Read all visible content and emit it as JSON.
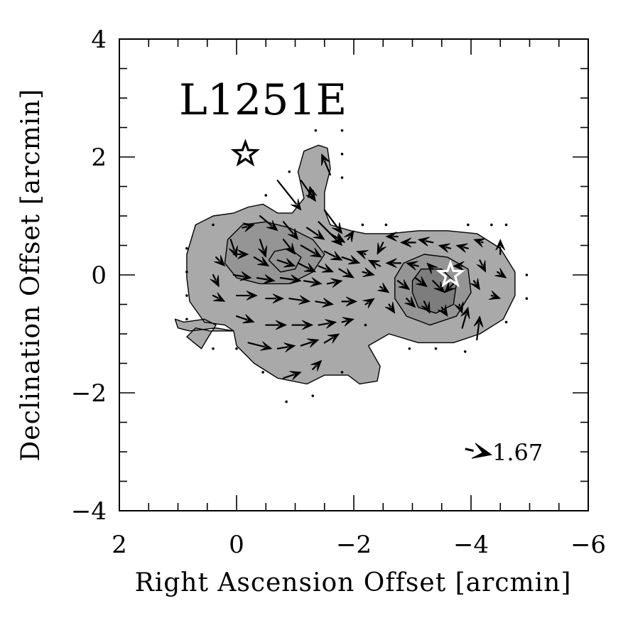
{
  "chart_data": {
    "type": "scatter",
    "title": "L1251E",
    "xlabel": "Right Ascension Offset [arcmin]",
    "ylabel": "Declination Offset [arcmin]",
    "xlim": [
      2,
      -6
    ],
    "ylim": [
      -4,
      4
    ],
    "x_ticks": [
      "2",
      "0",
      "−2",
      "−4",
      "−6"
    ],
    "y_ticks": [
      "−4",
      "−2",
      "0",
      "2",
      "4"
    ],
    "legend": "none",
    "grid": false,
    "scale_vector": {
      "label": "1.67",
      "x": -3.9,
      "y": -2.95,
      "dx": -0.45,
      "dy": -0.1
    },
    "stars": [
      {
        "name": "star-black",
        "x": -0.15,
        "y": 2.05,
        "color": "#000000"
      },
      {
        "name": "star-white",
        "x": -3.65,
        "y": 0.0,
        "color": "#ffffff"
      }
    ],
    "vectors": [
      {
        "x": -1.1,
        "y": 1.6,
        "dx": -0.25,
        "dy": -0.35
      },
      {
        "x": -1.6,
        "y": 1.7,
        "dx": 0.15,
        "dy": 0.35
      },
      {
        "x": -1.3,
        "y": 1.3,
        "dx": 0.05,
        "dy": 0.2
      },
      {
        "x": -0.7,
        "y": 1.6,
        "dx": -0.4,
        "dy": -0.5
      },
      {
        "x": -1.5,
        "y": 1.1,
        "dx": -0.3,
        "dy": -0.4
      },
      {
        "x": -1.4,
        "y": 0.9,
        "dx": -0.4,
        "dy": -0.4
      },
      {
        "x": -0.4,
        "y": 1.0,
        "dx": -0.3,
        "dy": -0.25
      },
      {
        "x": -0.8,
        "y": 0.9,
        "dx": -0.25,
        "dy": -0.3
      },
      {
        "x": -1.2,
        "y": 0.8,
        "dx": -0.3,
        "dy": -0.2
      },
      {
        "x": -1.6,
        "y": 0.7,
        "dx": -0.25,
        "dy": -0.15
      },
      {
        "x": -1.9,
        "y": 0.6,
        "dx": -0.1,
        "dy": 0.15
      },
      {
        "x": -0.1,
        "y": 0.8,
        "dx": -0.2,
        "dy": 0.05
      },
      {
        "x": 0.1,
        "y": 0.6,
        "dx": -0.1,
        "dy": -0.3
      },
      {
        "x": -0.4,
        "y": 0.6,
        "dx": -0.1,
        "dy": -0.3
      },
      {
        "x": -0.8,
        "y": 0.6,
        "dx": -0.2,
        "dy": -0.25
      },
      {
        "x": -1.1,
        "y": 0.5,
        "dx": -0.35,
        "dy": -0.2
      },
      {
        "x": -1.5,
        "y": 0.4,
        "dx": -0.3,
        "dy": -0.15
      },
      {
        "x": -1.8,
        "y": 0.3,
        "dx": -0.3,
        "dy": -0.1
      },
      {
        "x": -2.2,
        "y": 0.35,
        "dx": 0.15,
        "dy": 0.05
      },
      {
        "x": 0.35,
        "y": 0.3,
        "dx": -0.15,
        "dy": -0.15
      },
      {
        "x": 0.05,
        "y": 0.35,
        "dx": -0.25,
        "dy": 0.0
      },
      {
        "x": -0.3,
        "y": 0.3,
        "dx": -0.25,
        "dy": -0.15
      },
      {
        "x": -0.7,
        "y": 0.25,
        "dx": -0.3,
        "dy": -0.1
      },
      {
        "x": -1.05,
        "y": 0.2,
        "dx": -0.3,
        "dy": -0.15
      },
      {
        "x": -1.4,
        "y": 0.15,
        "dx": -0.25,
        "dy": -0.1
      },
      {
        "x": -1.75,
        "y": 0.1,
        "dx": -0.25,
        "dy": -0.15
      },
      {
        "x": -2.15,
        "y": 0.05,
        "dx": -0.2,
        "dy": -0.05
      },
      {
        "x": 0.4,
        "y": 0.0,
        "dx": -0.1,
        "dy": -0.2
      },
      {
        "x": 0.05,
        "y": 0.0,
        "dx": -0.3,
        "dy": -0.05
      },
      {
        "x": -0.35,
        "y": -0.05,
        "dx": -0.3,
        "dy": -0.05
      },
      {
        "x": -0.75,
        "y": -0.05,
        "dx": -0.35,
        "dy": -0.05
      },
      {
        "x": -1.15,
        "y": -0.1,
        "dx": -0.3,
        "dy": -0.05
      },
      {
        "x": -1.55,
        "y": -0.15,
        "dx": -0.25,
        "dy": 0.05
      },
      {
        "x": 0.4,
        "y": -0.35,
        "dx": -0.2,
        "dy": -0.1
      },
      {
        "x": 0.0,
        "y": -0.35,
        "dx": -0.35,
        "dy": 0.0
      },
      {
        "x": -0.5,
        "y": -0.4,
        "dx": -0.3,
        "dy": 0.0
      },
      {
        "x": -0.9,
        "y": -0.4,
        "dx": -0.35,
        "dy": -0.05
      },
      {
        "x": -1.35,
        "y": -0.45,
        "dx": -0.3,
        "dy": -0.05
      },
      {
        "x": -1.8,
        "y": -0.45,
        "dx": -0.25,
        "dy": 0.0
      },
      {
        "x": -2.2,
        "y": -0.5,
        "dx": -0.15,
        "dy": 0.1
      },
      {
        "x": 0.0,
        "y": -0.7,
        "dx": -0.3,
        "dy": -0.1
      },
      {
        "x": -0.5,
        "y": -0.85,
        "dx": -0.35,
        "dy": 0.0
      },
      {
        "x": -0.95,
        "y": -0.85,
        "dx": -0.35,
        "dy": 0.0
      },
      {
        "x": -1.4,
        "y": -0.85,
        "dx": -0.3,
        "dy": 0.05
      },
      {
        "x": -1.8,
        "y": -0.8,
        "dx": -0.2,
        "dy": 0.05
      },
      {
        "x": -0.2,
        "y": -1.15,
        "dx": -0.4,
        "dy": -0.1
      },
      {
        "x": -0.7,
        "y": -1.25,
        "dx": -0.3,
        "dy": 0.05
      },
      {
        "x": -1.1,
        "y": -1.2,
        "dx": -0.3,
        "dy": 0.1
      },
      {
        "x": -1.5,
        "y": -1.15,
        "dx": -0.25,
        "dy": 0.15
      },
      {
        "x": -0.8,
        "y": -1.75,
        "dx": -0.3,
        "dy": 0.1
      },
      {
        "x": -1.3,
        "y": -1.6,
        "dx": -0.15,
        "dy": 0.15
      },
      {
        "x": -2.5,
        "y": 0.55,
        "dx": 0.1,
        "dy": -0.2
      },
      {
        "x": -2.75,
        "y": 0.65,
        "dx": 0.2,
        "dy": 0.0
      },
      {
        "x": -3.05,
        "y": 0.55,
        "dx": 0.25,
        "dy": 0.0
      },
      {
        "x": -3.35,
        "y": 0.55,
        "dx": 0.25,
        "dy": 0.05
      },
      {
        "x": -3.65,
        "y": 0.45,
        "dx": 0.2,
        "dy": 0.05
      },
      {
        "x": -3.95,
        "y": 0.45,
        "dx": 0.2,
        "dy": 0.05
      },
      {
        "x": -4.2,
        "y": 0.55,
        "dx": 0.15,
        "dy": 0.05
      },
      {
        "x": -4.5,
        "y": 0.35,
        "dx": 0.0,
        "dy": 0.25
      },
      {
        "x": -2.45,
        "y": 0.15,
        "dx": 0.2,
        "dy": 0.1
      },
      {
        "x": -2.8,
        "y": 0.2,
        "dx": 0.25,
        "dy": 0.0
      },
      {
        "x": -3.1,
        "y": 0.15,
        "dx": 0.2,
        "dy": 0.05
      },
      {
        "x": -3.35,
        "y": 0.1,
        "dx": 0.1,
        "dy": 0.1
      },
      {
        "x": -3.85,
        "y": 0.15,
        "dx": 0.15,
        "dy": 0.0
      },
      {
        "x": -4.15,
        "y": 0.25,
        "dx": -0.1,
        "dy": -0.2
      },
      {
        "x": -4.45,
        "y": 0.05,
        "dx": -0.15,
        "dy": -0.1
      },
      {
        "x": -2.45,
        "y": -0.2,
        "dx": -0.15,
        "dy": -0.1
      },
      {
        "x": -2.75,
        "y": -0.1,
        "dx": -0.2,
        "dy": -0.15
      },
      {
        "x": -3.05,
        "y": -0.05,
        "dx": -0.2,
        "dy": -0.15
      },
      {
        "x": -3.35,
        "y": -0.1,
        "dx": -0.2,
        "dy": -0.2
      },
      {
        "x": -3.7,
        "y": -0.15,
        "dx": 0.15,
        "dy": -0.15
      },
      {
        "x": -4.05,
        "y": -0.1,
        "dx": -0.1,
        "dy": -0.15
      },
      {
        "x": -4.35,
        "y": -0.35,
        "dx": -0.15,
        "dy": -0.05
      },
      {
        "x": -2.6,
        "y": -0.5,
        "dx": -0.1,
        "dy": -0.15
      },
      {
        "x": -2.9,
        "y": -0.4,
        "dx": -0.15,
        "dy": -0.15
      },
      {
        "x": -3.2,
        "y": -0.45,
        "dx": -0.1,
        "dy": -0.2
      },
      {
        "x": -3.5,
        "y": -0.55,
        "dx": -0.1,
        "dy": -0.15
      },
      {
        "x": -3.8,
        "y": -0.5,
        "dx": -0.05,
        "dy": -0.15
      },
      {
        "x": -3.85,
        "y": -0.9,
        "dx": -0.1,
        "dy": 0.35
      },
      {
        "x": -4.1,
        "y": -1.1,
        "dx": -0.05,
        "dy": 0.4
      }
    ],
    "dots": [
      {
        "x": -1.35,
        "y": 2.45
      },
      {
        "x": -1.8,
        "y": 2.45
      },
      {
        "x": -1.8,
        "y": 2.05
      },
      {
        "x": -1.8,
        "y": 1.65
      },
      {
        "x": -0.9,
        "y": 1.75
      },
      {
        "x": -0.5,
        "y": 1.35
      },
      {
        "x": 0.4,
        "y": 0.85
      },
      {
        "x": 0.85,
        "y": 0.45
      },
      {
        "x": 0.85,
        "y": 0.05
      },
      {
        "x": 0.85,
        "y": -0.35
      },
      {
        "x": 0.85,
        "y": -0.75
      },
      {
        "x": 0.4,
        "y": -1.25
      },
      {
        "x": 0.0,
        "y": -1.25
      },
      {
        "x": -0.45,
        "y": -1.65
      },
      {
        "x": -0.85,
        "y": -2.15
      },
      {
        "x": -1.3,
        "y": -2.05
      },
      {
        "x": -1.8,
        "y": -1.65
      },
      {
        "x": -2.15,
        "y": 0.85
      },
      {
        "x": -2.55,
        "y": 0.85
      },
      {
        "x": -2.2,
        "y": -0.85
      },
      {
        "x": -2.95,
        "y": -1.25
      },
      {
        "x": -3.4,
        "y": -1.25
      },
      {
        "x": -3.9,
        "y": -1.3
      },
      {
        "x": -3.95,
        "y": 0.85
      },
      {
        "x": -4.35,
        "y": 0.85
      },
      {
        "x": -4.6,
        "y": 0.85
      },
      {
        "x": -4.6,
        "y": -0.8
      },
      {
        "x": -4.95,
        "y": 0.0
      },
      {
        "x": -4.95,
        "y": -0.4
      }
    ],
    "contours": [
      {
        "level": 1,
        "fill": "#a9a9a9",
        "points": [
          [
            -0.3,
            -1.5
          ],
          [
            -0.7,
            -1.75
          ],
          [
            -1.2,
            -1.85
          ],
          [
            -1.5,
            -1.7
          ],
          [
            -1.9,
            -1.7
          ],
          [
            -2.1,
            -1.85
          ],
          [
            -2.4,
            -1.8
          ],
          [
            -2.45,
            -1.55
          ],
          [
            -2.25,
            -1.2
          ],
          [
            -2.6,
            -1.0
          ],
          [
            -3.1,
            -1.15
          ],
          [
            -3.7,
            -1.15
          ],
          [
            -4.15,
            -1.0
          ],
          [
            -4.55,
            -0.75
          ],
          [
            -4.75,
            -0.35
          ],
          [
            -4.75,
            0.05
          ],
          [
            -4.5,
            0.45
          ],
          [
            -4.1,
            0.7
          ],
          [
            -3.6,
            0.75
          ],
          [
            -3.1,
            0.75
          ],
          [
            -2.6,
            0.7
          ],
          [
            -2.2,
            0.7
          ],
          [
            -1.95,
            0.75
          ],
          [
            -1.6,
            0.85
          ],
          [
            -1.5,
            1.1
          ],
          [
            -1.5,
            1.4
          ],
          [
            -1.6,
            1.8
          ],
          [
            -1.55,
            2.15
          ],
          [
            -1.4,
            2.2
          ],
          [
            -1.15,
            2.1
          ],
          [
            -1.05,
            1.75
          ],
          [
            -1.15,
            1.3
          ],
          [
            -0.95,
            1.05
          ],
          [
            -0.7,
            1.05
          ],
          [
            -0.45,
            1.2
          ],
          [
            -0.2,
            1.15
          ],
          [
            0.05,
            1.05
          ],
          [
            0.4,
            1.0
          ],
          [
            0.7,
            0.85
          ],
          [
            0.85,
            0.35
          ],
          [
            0.85,
            -0.05
          ],
          [
            0.8,
            -0.45
          ],
          [
            0.55,
            -0.8
          ],
          [
            0.2,
            -0.85
          ],
          [
            0.05,
            -0.95
          ],
          [
            0.45,
            -0.95
          ],
          [
            0.7,
            -0.9
          ],
          [
            0.85,
            -1.05
          ],
          [
            0.6,
            -1.25
          ],
          [
            0.45,
            -1.0
          ],
          [
            0.35,
            -0.85
          ],
          [
            0.55,
            -0.75
          ],
          [
            0.9,
            -0.8
          ],
          [
            1.05,
            -0.75
          ],
          [
            1.0,
            -0.9
          ],
          [
            0.8,
            -0.95
          ],
          [
            0.35,
            -0.9
          ],
          [
            0.05,
            -0.95
          ],
          [
            0.0,
            -1.2
          ],
          [
            -0.3,
            -1.5
          ]
        ]
      },
      {
        "level": 2,
        "fill": "#959595",
        "points": [
          [
            0.2,
            0.2
          ],
          [
            0.15,
            0.6
          ],
          [
            -0.1,
            0.85
          ],
          [
            -0.5,
            0.9
          ],
          [
            -0.9,
            0.8
          ],
          [
            -1.3,
            0.6
          ],
          [
            -1.5,
            0.35
          ],
          [
            -1.3,
            0.05
          ],
          [
            -0.9,
            -0.15
          ],
          [
            -0.4,
            -0.15
          ],
          [
            0.0,
            -0.05
          ],
          [
            0.2,
            0.2
          ]
        ]
      },
      {
        "level": 2,
        "fill": "#959595",
        "points": [
          [
            -2.7,
            -0.05
          ],
          [
            -2.85,
            0.2
          ],
          [
            -3.2,
            0.35
          ],
          [
            -3.6,
            0.3
          ],
          [
            -3.95,
            0.1
          ],
          [
            -4.0,
            -0.3
          ],
          [
            -3.75,
            -0.7
          ],
          [
            -3.3,
            -0.85
          ],
          [
            -2.9,
            -0.7
          ],
          [
            -2.7,
            -0.4
          ],
          [
            -2.7,
            -0.05
          ]
        ]
      },
      {
        "level": 3,
        "fill": "#7d7d7d",
        "points": [
          [
            -3.0,
            -0.1
          ],
          [
            -3.15,
            0.1
          ],
          [
            -3.5,
            0.1
          ],
          [
            -3.75,
            -0.15
          ],
          [
            -3.7,
            -0.5
          ],
          [
            -3.4,
            -0.65
          ],
          [
            -3.1,
            -0.55
          ],
          [
            -3.0,
            -0.3
          ],
          [
            -3.0,
            -0.1
          ]
        ]
      },
      {
        "level": 2,
        "fill": "#959595",
        "points": [
          [
            -0.55,
            0.25
          ],
          [
            -0.65,
            0.4
          ],
          [
            -0.9,
            0.45
          ],
          [
            -1.1,
            0.3
          ],
          [
            -1.0,
            0.1
          ],
          [
            -0.75,
            0.05
          ],
          [
            -0.55,
            0.25
          ]
        ]
      }
    ]
  }
}
